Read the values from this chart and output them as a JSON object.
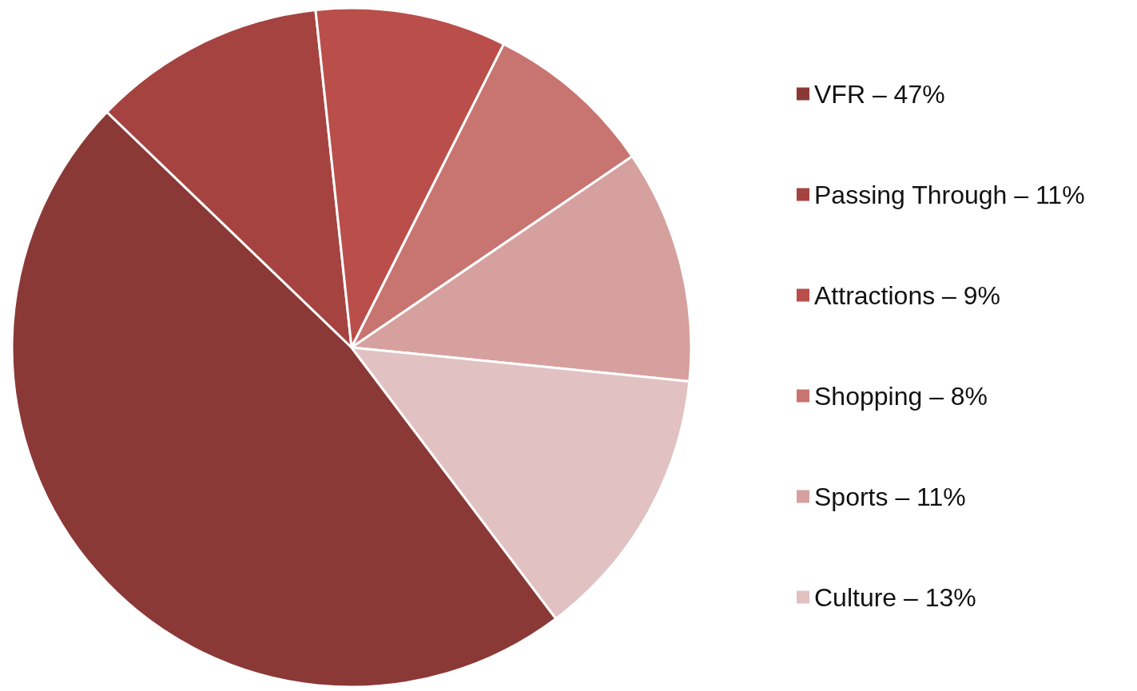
{
  "chart_data": {
    "type": "pie",
    "categories": [
      "VFR – 47%",
      "Passing Through – 11%",
      "Attractions – 9%",
      "Shopping – 8%",
      "Sports – 11%",
      "Culture – 13%"
    ],
    "values": [
      47,
      11,
      9,
      8,
      11,
      13
    ],
    "colors": [
      "#8b3937",
      "#a54341",
      "#b94e4a",
      "#c87471",
      "#d6a09f",
      "#e1c1c2"
    ],
    "legend": "right"
  }
}
